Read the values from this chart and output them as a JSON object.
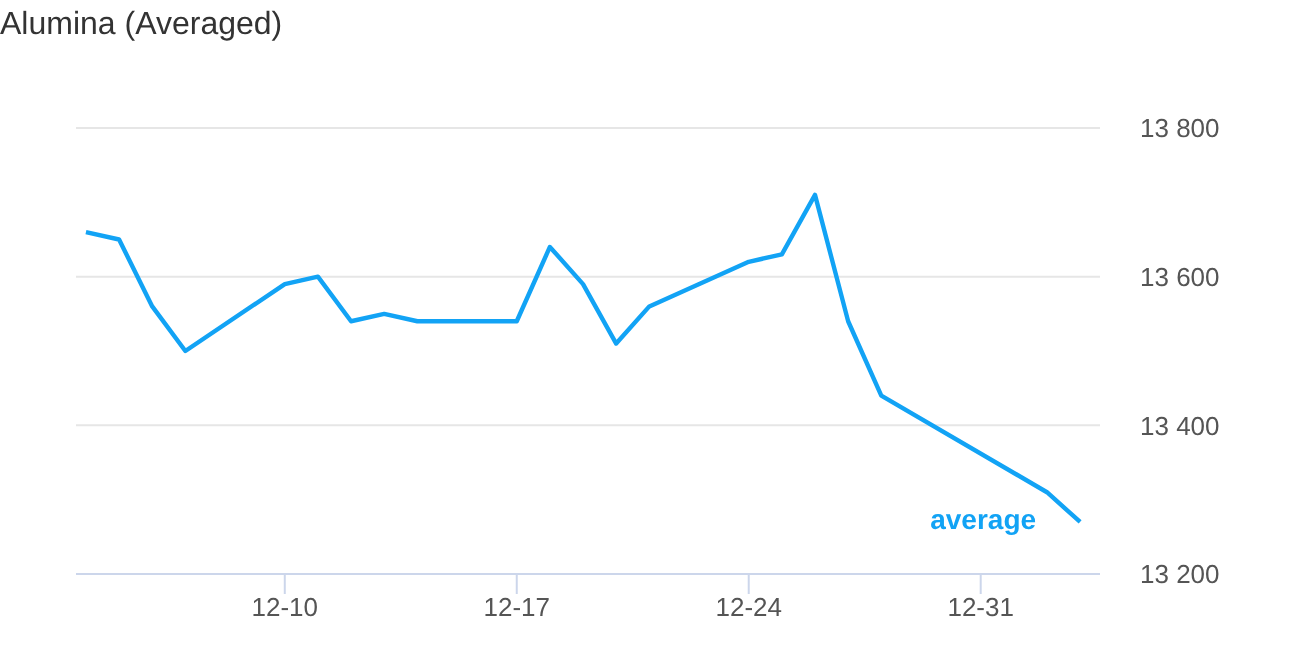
{
  "chart_data": {
    "type": "line",
    "title": "Alumina (Averaged)",
    "categories": [
      null,
      null,
      null,
      null,
      null,
      null,
      "12-10",
      null,
      null,
      null,
      null,
      null,
      null,
      "12-17",
      null,
      null,
      null,
      null,
      null,
      null,
      "12-24",
      null,
      null,
      null,
      null,
      null,
      null,
      "12-31",
      null,
      null,
      null
    ],
    "series": [
      {
        "name": "average",
        "color": "#12a3f5",
        "values": [
          13660,
          13650,
          13560,
          13500,
          null,
          null,
          13590,
          13600,
          13540,
          13550,
          13540,
          null,
          null,
          13540,
          13640,
          13590,
          13510,
          13560,
          null,
          null,
          13620,
          13630,
          13710,
          13540,
          13440,
          null,
          null,
          null,
          null,
          13310,
          13270
        ]
      }
    ],
    "ylim": [
      13200,
      13800
    ],
    "yticks": [
      {
        "value": 13200,
        "label": "13 200"
      },
      {
        "value": 13400,
        "label": "13 400"
      },
      {
        "value": 13600,
        "label": "13 600"
      },
      {
        "value": 13800,
        "label": "13 800"
      }
    ],
    "grid": "y",
    "legend": false,
    "marker": "none",
    "line_style": "solid"
  }
}
